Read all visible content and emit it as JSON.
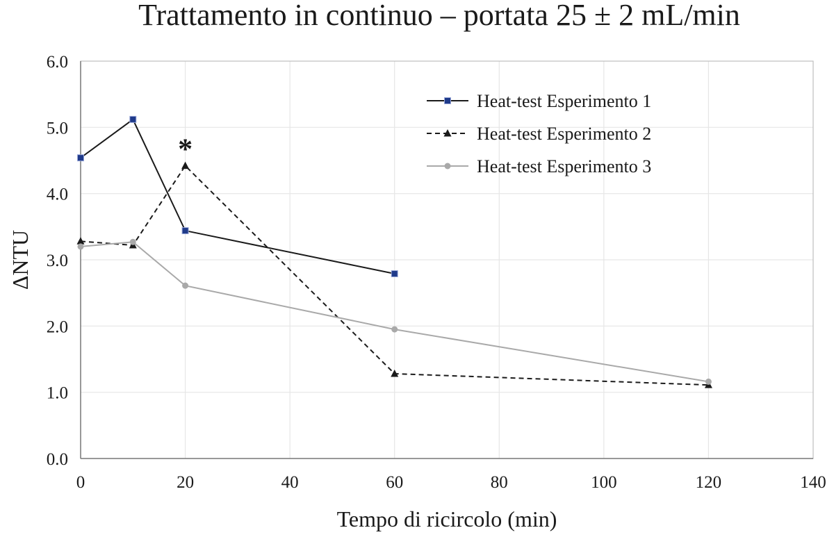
{
  "chart_data": {
    "type": "line",
    "title": "Trattamento in continuo – portata 25 ± 2 mL/min",
    "xlabel": "Tempo di ricircolo (min)",
    "ylabel": "ΔNTU",
    "xlim": [
      0,
      140
    ],
    "ylim": [
      0,
      6
    ],
    "xticks": [
      0,
      20,
      40,
      60,
      80,
      100,
      120,
      140
    ],
    "yticks": [
      0,
      1,
      2,
      3,
      4,
      5,
      6
    ],
    "xtick_labels": [
      "0",
      "20",
      "40",
      "60",
      "80",
      "100",
      "120",
      "140"
    ],
    "ytick_labels": [
      "0.0",
      "1.0",
      "2.0",
      "3.0",
      "4.0",
      "5.0",
      "6.0"
    ],
    "grid": true,
    "legend_position": "top-right",
    "series": [
      {
        "name": "Heat-test Esperimento 1",
        "x": [
          0,
          10,
          20,
          60
        ],
        "y": [
          4.54,
          5.12,
          3.44,
          2.79
        ],
        "color": "#1a1a1a",
        "marker_color": "#1f3a8a",
        "marker": "square",
        "dash": "solid"
      },
      {
        "name": "Heat-test Esperimento 2",
        "x": [
          0,
          10,
          20,
          60,
          120
        ],
        "y": [
          3.28,
          3.22,
          4.42,
          1.28,
          1.11
        ],
        "color": "#1a1a1a",
        "marker_color": "#1a1a1a",
        "marker": "triangle",
        "dash": "dashed"
      },
      {
        "name": "Heat-test Esperimento 3",
        "x": [
          0,
          10,
          20,
          60,
          120
        ],
        "y": [
          3.2,
          3.27,
          2.61,
          1.95,
          1.16
        ],
        "color": "#a9a9a9",
        "marker_color": "#a9a9a9",
        "marker": "circle",
        "dash": "solid"
      }
    ],
    "annotations": [
      {
        "text": "*",
        "x": 20,
        "y": 4.42
      }
    ]
  }
}
